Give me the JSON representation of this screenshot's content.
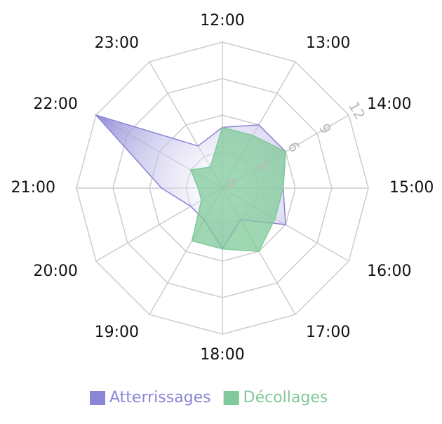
{
  "chart_data": {
    "type": "radar",
    "categories": [
      "12:00",
      "13:00",
      "14:00",
      "15:00",
      "16:00",
      "17:00",
      "18:00",
      "19:00",
      "20:00",
      "21:00",
      "22:00",
      "23:00"
    ],
    "rlim": [
      0,
      12
    ],
    "rticks": [
      0,
      3,
      6,
      9,
      12
    ],
    "grid": true,
    "legend": "bottom",
    "series": [
      {
        "name": "Atterrissages",
        "color": "#8b85d6",
        "values": [
          5,
          6,
          6,
          5,
          6,
          3,
          5,
          3,
          3,
          5,
          12,
          4
        ]
      },
      {
        "name": "Décollages",
        "color": "#80c99a",
        "values": [
          5,
          5,
          6,
          5,
          5,
          6,
          5,
          5,
          2,
          2,
          3,
          2
        ]
      }
    ]
  }
}
